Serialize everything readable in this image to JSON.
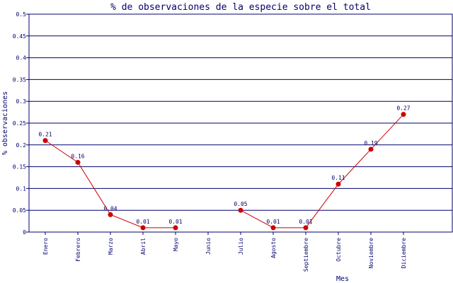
{
  "chart_data": {
    "type": "line",
    "title": "% de observaciones de la especie sobre el total",
    "xlabel": "Mes",
    "ylabel": "% observaciones",
    "categories": [
      "Enero",
      "Febrero",
      "Marzo",
      "Abril",
      "Mayo",
      "Junio",
      "Julio",
      "Agosto",
      "Septiembre",
      "Octubre",
      "Noviembre",
      "Diciembre"
    ],
    "series": [
      {
        "values": [
          0.21,
          0.16,
          0.04,
          0.01,
          0.01,
          null,
          0.05,
          0.01,
          0.01,
          0.11,
          0.19,
          0.27
        ],
        "labels": [
          "0.21",
          "0.16",
          "0.04",
          "0.01",
          "0.01",
          null,
          "0.05",
          "0.01",
          "0.01",
          "0.11",
          "0.19",
          "0.27"
        ]
      }
    ],
    "yticks": [
      "0",
      "0.05",
      "0.1",
      "0.15",
      "0.2",
      "0.25",
      "0.3",
      "0.35",
      "0.4",
      "0.45",
      "0.5"
    ],
    "ylim": [
      0,
      0.5
    ],
    "grid": true,
    "colors": {
      "line": "#cc0000",
      "marker": "#cc0000",
      "grid": "#00006e",
      "text": "#00006e"
    }
  }
}
